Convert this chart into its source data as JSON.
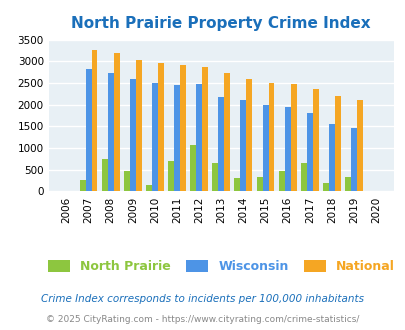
{
  "title": "North Prairie Property Crime Index",
  "years": [
    2006,
    2007,
    2008,
    2009,
    2010,
    2011,
    2012,
    2013,
    2014,
    2015,
    2016,
    2017,
    2018,
    2019,
    2020
  ],
  "north_prairie": [
    0,
    270,
    740,
    460,
    150,
    700,
    1060,
    660,
    300,
    330,
    470,
    650,
    190,
    340,
    0
  ],
  "wisconsin": [
    0,
    2820,
    2740,
    2600,
    2500,
    2460,
    2480,
    2170,
    2100,
    1990,
    1940,
    1800,
    1550,
    1470,
    0
  ],
  "national": [
    0,
    3250,
    3190,
    3030,
    2950,
    2910,
    2860,
    2720,
    2590,
    2490,
    2470,
    2360,
    2200,
    2110,
    0
  ],
  "bar_width": 0.27,
  "ylim": [
    0,
    3500
  ],
  "yticks": [
    0,
    500,
    1000,
    1500,
    2000,
    2500,
    3000,
    3500
  ],
  "color_np": "#8dc63f",
  "color_wi": "#4d94e6",
  "color_nat": "#f5a623",
  "bg_color": "#dce9f0",
  "plot_bg": "#e8f0f5",
  "grid_color": "#ffffff",
  "title_color": "#1a6fba",
  "legend_label_np": "North Prairie",
  "legend_label_wi": "Wisconsin",
  "legend_label_nat": "National",
  "footnote1": "Crime Index corresponds to incidents per 100,000 inhabitants",
  "footnote2": "© 2025 CityRating.com - https://www.cityrating.com/crime-statistics/",
  "footnote1_color": "#1a6fba",
  "footnote2_color": "#888888"
}
